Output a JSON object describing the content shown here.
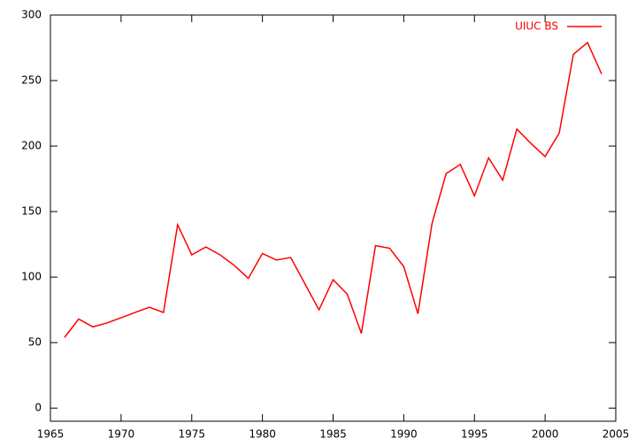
{
  "chart_data": {
    "type": "line",
    "x": [
      1966,
      1967,
      1968,
      1969,
      1970,
      1971,
      1972,
      1973,
      1974,
      1975,
      1976,
      1977,
      1978,
      1979,
      1980,
      1981,
      1982,
      1983,
      1984,
      1985,
      1986,
      1987,
      1988,
      1989,
      1990,
      1991,
      1992,
      1993,
      1994,
      1995,
      1996,
      1997,
      1998,
      1999,
      2000,
      2001,
      2002,
      2003,
      2004
    ],
    "series": [
      {
        "name": "UIUC BS",
        "color": "#ff0000",
        "values": [
          54,
          68,
          62,
          65,
          69,
          73,
          77,
          73,
          140,
          117,
          123,
          117,
          109,
          99,
          118,
          113,
          115,
          95,
          75,
          98,
          87,
          57,
          124,
          122,
          108,
          72,
          141,
          179,
          186,
          162,
          191,
          174,
          213,
          202,
          192,
          210,
          270,
          279,
          255
        ]
      }
    ],
    "xlim": [
      1965,
      2005
    ],
    "xticks": [
      1965,
      1970,
      1975,
      1980,
      1985,
      1990,
      1995,
      2000,
      2005
    ],
    "ylim": [
      -10,
      300
    ],
    "yticks": [
      0,
      50,
      100,
      150,
      200,
      250,
      300
    ],
    "grid": false,
    "legend": "top-right"
  }
}
